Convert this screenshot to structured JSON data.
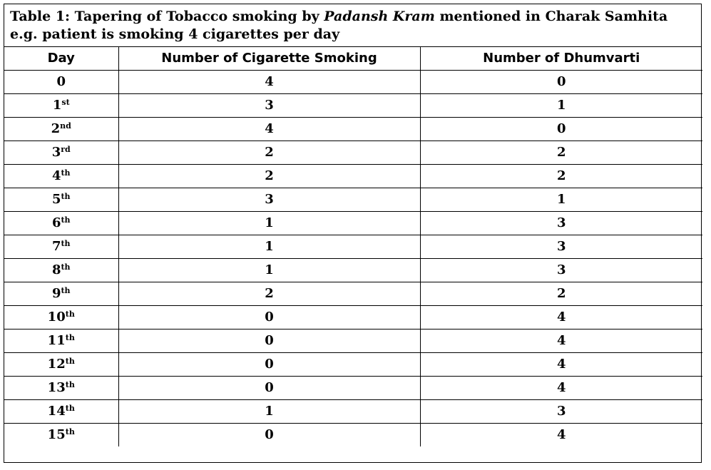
{
  "caption": {
    "prefix": "Table 1: Tapering of Tobacco smoking by ",
    "emphasis": "Padansh Kram",
    "suffix": " mentioned in Charak Samhita e.g. patient is smoking 4 cigarettes per day"
  },
  "headers": [
    "Day",
    "Number of Cigarette Smoking",
    "Number of Dhumvarti"
  ],
  "rows": [
    {
      "day": "0",
      "sup": "",
      "cig": "4",
      "dhum": "0"
    },
    {
      "day": "1",
      "sup": "st",
      "cig": "3",
      "dhum": "1"
    },
    {
      "day": "2",
      "sup": "nd",
      "cig": "4",
      "dhum": "0"
    },
    {
      "day": "3",
      "sup": "rd",
      "cig": "2",
      "dhum": "2"
    },
    {
      "day": "4",
      "sup": "th",
      "cig": "2",
      "dhum": "2"
    },
    {
      "day": "5",
      "sup": "th",
      "cig": "3",
      "dhum": "1"
    },
    {
      "day": "6",
      "sup": "th",
      "cig": "1",
      "dhum": "3"
    },
    {
      "day": "7",
      "sup": "th",
      "cig": "1",
      "dhum": "3"
    },
    {
      "day": "8",
      "sup": "th",
      "cig": "1",
      "dhum": "3"
    },
    {
      "day": "9",
      "sup": "th",
      "cig": "2",
      "dhum": "2"
    },
    {
      "day": "10",
      "sup": "th",
      "cig": "0",
      "dhum": "4"
    },
    {
      "day": "11",
      "sup": "th",
      "cig": "0",
      "dhum": "4"
    },
    {
      "day": "12",
      "sup": "th",
      "cig": "0",
      "dhum": "4"
    },
    {
      "day": "13",
      "sup": "th",
      "cig": "0",
      "dhum": "4"
    },
    {
      "day": "14",
      "sup": "th",
      "cig": "1",
      "dhum": "3"
    },
    {
      "day": "15",
      "sup": "th",
      "cig": "0",
      "dhum": "4"
    }
  ]
}
